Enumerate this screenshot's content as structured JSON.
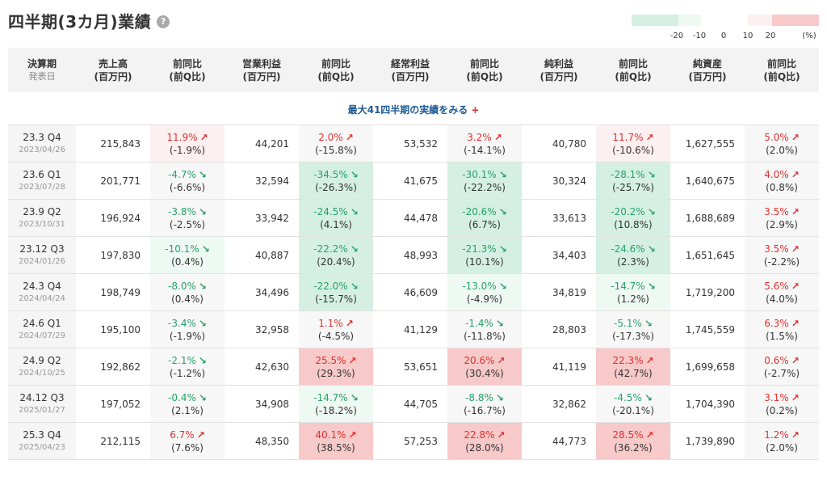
{
  "page": {
    "title": "四半期(3カ月)業績",
    "help_label": "?"
  },
  "legend": {
    "colors": [
      "#d5f0e3",
      "#eef9f3",
      "#ffffff",
      "#fdf0f0",
      "#f7c9c9"
    ],
    "ticks": [
      "-20",
      "-10",
      "0",
      "10",
      "20",
      "(%)"
    ]
  },
  "headers": [
    {
      "label": "決算期",
      "sub": "発表日"
    },
    {
      "label": "売上高",
      "sub2": "(百万円)"
    },
    {
      "label": "前同比",
      "sub2": "(前Q比)"
    },
    {
      "label": "営業利益",
      "sub2": "(百万円)"
    },
    {
      "label": "前同比",
      "sub2": "(前Q比)"
    },
    {
      "label": "経常利益",
      "sub2": "(百万円)"
    },
    {
      "label": "前同比",
      "sub2": "(前Q比)"
    },
    {
      "label": "純利益",
      "sub2": "(百万円)"
    },
    {
      "label": "前同比",
      "sub2": "(前Q比)"
    },
    {
      "label": "純資産",
      "sub2": "(百万円)"
    },
    {
      "label": "前同比",
      "sub2": "(前Q比)"
    }
  ],
  "more_link": {
    "label": "最大41四半期の実績をみる",
    "plus": "+"
  },
  "rows": [
    {
      "period": "23.3 Q4",
      "date": "2023/04/26",
      "sales": "215,843",
      "sales_yoy": "11.9%",
      "sales_qoq": "(-1.9%)",
      "sales_dir": "up",
      "sales_bg": "r1",
      "op": "44,201",
      "op_yoy": "2.0%",
      "op_qoq": "(-15.8%)",
      "op_dir": "up",
      "op_bg": "n",
      "ord": "53,532",
      "ord_yoy": "3.2%",
      "ord_qoq": "(-14.1%)",
      "ord_dir": "up",
      "ord_bg": "n",
      "net": "40,780",
      "net_yoy": "11.7%",
      "net_qoq": "(-10.6%)",
      "net_dir": "up",
      "net_bg": "r1",
      "assets": "1,627,555",
      "assets_yoy": "5.0%",
      "assets_qoq": "(2.0%)",
      "assets_dir": "up",
      "assets_bg": "n"
    },
    {
      "period": "23.6 Q1",
      "date": "2023/07/28",
      "sales": "201,771",
      "sales_yoy": "-4.7%",
      "sales_qoq": "(-6.6%)",
      "sales_dir": "down",
      "sales_bg": "n",
      "op": "32,594",
      "op_yoy": "-34.5%",
      "op_qoq": "(-26.3%)",
      "op_dir": "down",
      "op_bg": "g3",
      "ord": "41,675",
      "ord_yoy": "-30.1%",
      "ord_qoq": "(-22.2%)",
      "ord_dir": "down",
      "ord_bg": "g3",
      "net": "30,324",
      "net_yoy": "-28.1%",
      "net_qoq": "(-25.7%)",
      "net_dir": "down",
      "net_bg": "g3",
      "assets": "1,640,675",
      "assets_yoy": "4.0%",
      "assets_qoq": "(0.8%)",
      "assets_dir": "up",
      "assets_bg": "n"
    },
    {
      "period": "23.9 Q2",
      "date": "2023/10/31",
      "sales": "196,924",
      "sales_yoy": "-3.8%",
      "sales_qoq": "(-2.5%)",
      "sales_dir": "down",
      "sales_bg": "n",
      "op": "33,942",
      "op_yoy": "-24.5%",
      "op_qoq": "(4.1%)",
      "op_dir": "down",
      "op_bg": "g3",
      "ord": "44,478",
      "ord_yoy": "-20.6%",
      "ord_qoq": "(6.7%)",
      "ord_dir": "down",
      "ord_bg": "g3",
      "net": "33,613",
      "net_yoy": "-20.2%",
      "net_qoq": "(10.8%)",
      "net_dir": "down",
      "net_bg": "g3",
      "assets": "1,688,689",
      "assets_yoy": "3.5%",
      "assets_qoq": "(2.9%)",
      "assets_dir": "up",
      "assets_bg": "n"
    },
    {
      "period": "23.12 Q3",
      "date": "2024/01/26",
      "sales": "197,830",
      "sales_yoy": "-10.1%",
      "sales_qoq": "(0.4%)",
      "sales_dir": "down",
      "sales_bg": "g1",
      "op": "40,887",
      "op_yoy": "-22.2%",
      "op_qoq": "(20.4%)",
      "op_dir": "down",
      "op_bg": "g3",
      "ord": "48,993",
      "ord_yoy": "-21.3%",
      "ord_qoq": "(10.1%)",
      "ord_dir": "down",
      "ord_bg": "g3",
      "net": "34,403",
      "net_yoy": "-24.6%",
      "net_qoq": "(2.3%)",
      "net_dir": "down",
      "net_bg": "g3",
      "assets": "1,651,645",
      "assets_yoy": "3.5%",
      "assets_qoq": "(-2.2%)",
      "assets_dir": "up",
      "assets_bg": "n"
    },
    {
      "period": "24.3 Q4",
      "date": "2024/04/24",
      "sales": "198,749",
      "sales_yoy": "-8.0%",
      "sales_qoq": "(0.4%)",
      "sales_dir": "down",
      "sales_bg": "n",
      "op": "34,496",
      "op_yoy": "-22.0%",
      "op_qoq": "(-15.7%)",
      "op_dir": "down",
      "op_bg": "g3",
      "ord": "46,609",
      "ord_yoy": "-13.0%",
      "ord_qoq": "(-4.9%)",
      "ord_dir": "down",
      "ord_bg": "g1",
      "net": "34,819",
      "net_yoy": "-14.7%",
      "net_qoq": "(1.2%)",
      "net_dir": "down",
      "net_bg": "g1",
      "assets": "1,719,200",
      "assets_yoy": "5.6%",
      "assets_qoq": "(4.0%)",
      "assets_dir": "up",
      "assets_bg": "n"
    },
    {
      "period": "24.6 Q1",
      "date": "2024/07/29",
      "sales": "195,100",
      "sales_yoy": "-3.4%",
      "sales_qoq": "(-1.9%)",
      "sales_dir": "down",
      "sales_bg": "n",
      "op": "32,958",
      "op_yoy": "1.1%",
      "op_qoq": "(-4.5%)",
      "op_dir": "up",
      "op_bg": "n",
      "ord": "41,129",
      "ord_yoy": "-1.4%",
      "ord_qoq": "(-11.8%)",
      "ord_dir": "down",
      "ord_bg": "n",
      "net": "28,803",
      "net_yoy": "-5.1%",
      "net_qoq": "(-17.3%)",
      "net_dir": "down",
      "net_bg": "n",
      "assets": "1,745,559",
      "assets_yoy": "6.3%",
      "assets_qoq": "(1.5%)",
      "assets_dir": "up",
      "assets_bg": "n"
    },
    {
      "period": "24.9 Q2",
      "date": "2024/10/25",
      "sales": "192,862",
      "sales_yoy": "-2.1%",
      "sales_qoq": "(-1.2%)",
      "sales_dir": "down",
      "sales_bg": "n",
      "op": "42,630",
      "op_yoy": "25.5%",
      "op_qoq": "(29.3%)",
      "op_dir": "up",
      "op_bg": "r3",
      "ord": "53,651",
      "ord_yoy": "20.6%",
      "ord_qoq": "(30.4%)",
      "ord_dir": "up",
      "ord_bg": "r3",
      "net": "41,119",
      "net_yoy": "22.3%",
      "net_qoq": "(42.7%)",
      "net_dir": "up",
      "net_bg": "r3",
      "assets": "1,699,658",
      "assets_yoy": "0.6%",
      "assets_qoq": "(-2.7%)",
      "assets_dir": "up",
      "assets_bg": "n"
    },
    {
      "period": "24.12 Q3",
      "date": "2025/01/27",
      "sales": "197,052",
      "sales_yoy": "-0.4%",
      "sales_qoq": "(2.1%)",
      "sales_dir": "down",
      "sales_bg": "n",
      "op": "34,908",
      "op_yoy": "-14.7%",
      "op_qoq": "(-18.2%)",
      "op_dir": "down",
      "op_bg": "g1",
      "ord": "44,705",
      "ord_yoy": "-8.8%",
      "ord_qoq": "(-16.7%)",
      "ord_dir": "down",
      "ord_bg": "n",
      "net": "32,862",
      "net_yoy": "-4.5%",
      "net_qoq": "(-20.1%)",
      "net_dir": "down",
      "net_bg": "n",
      "assets": "1,704,390",
      "assets_yoy": "3.1%",
      "assets_qoq": "(0.2%)",
      "assets_dir": "up",
      "assets_bg": "n"
    },
    {
      "period": "25.3 Q4",
      "date": "2025/04/23",
      "sales": "212,115",
      "sales_yoy": "6.7%",
      "sales_qoq": "(7.6%)",
      "sales_dir": "up",
      "sales_bg": "n",
      "op": "48,350",
      "op_yoy": "40.1%",
      "op_qoq": "(38.5%)",
      "op_dir": "up",
      "op_bg": "r3",
      "ord": "57,253",
      "ord_yoy": "22.8%",
      "ord_qoq": "(28.0%)",
      "ord_dir": "up",
      "ord_bg": "r3",
      "net": "44,773",
      "net_yoy": "28.5%",
      "net_qoq": "(36.2%)",
      "net_dir": "up",
      "net_bg": "r3",
      "assets": "1,739,890",
      "assets_yoy": "1.2%",
      "assets_qoq": "(2.0%)",
      "assets_dir": "up",
      "assets_bg": "n"
    }
  ]
}
